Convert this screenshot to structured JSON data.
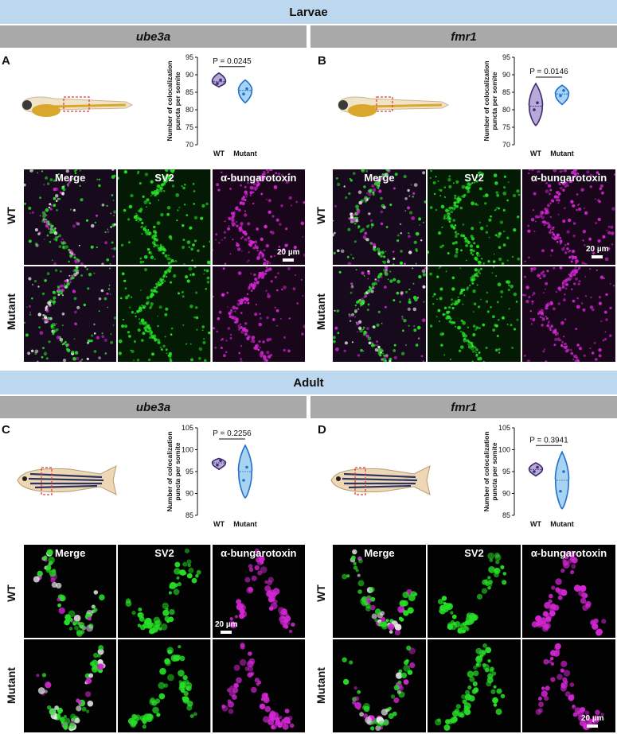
{
  "sections": {
    "larvae": {
      "title": "Larvae"
    },
    "adult": {
      "title": "Adult"
    }
  },
  "panels": {
    "A": {
      "letter": "A",
      "gene": "ube3a"
    },
    "B": {
      "letter": "B",
      "gene": "fmr1"
    },
    "C": {
      "letter": "C",
      "gene": "ube3a"
    },
    "D": {
      "letter": "D",
      "gene": "fmr1"
    }
  },
  "channels": [
    "Merge",
    "SV2",
    "α-bungarotoxin"
  ],
  "rows": [
    "WT",
    "Mutant"
  ],
  "scale_bar": "20 µm",
  "colors": {
    "wt_violin": "#b9a9d8",
    "wt_edge": "#3a2a70",
    "mut_violin": "#a8d4f2",
    "mut_edge": "#1f6fd0",
    "green": "#26e026",
    "magenta": "#d426d4"
  },
  "chart_data": [
    {
      "type": "violin",
      "panel": "A",
      "ylabel": "Number of colocalization puncta per somite",
      "ylim": [
        70,
        95
      ],
      "yticks": [
        70,
        75,
        80,
        85,
        90,
        95
      ],
      "categories": [
        "WT",
        "Mutant"
      ],
      "annotation": "P = 0.0245",
      "series": [
        {
          "name": "WT",
          "min": 86.5,
          "max": 90.5,
          "median": 88,
          "points": [
            87.5,
            88.5
          ]
        },
        {
          "name": "Mutant",
          "min": 82,
          "max": 88.5,
          "median": 85.5,
          "points": [
            84.5,
            86
          ]
        }
      ]
    },
    {
      "type": "violin",
      "panel": "B",
      "ylabel": "Number of colocalization puncta per somite",
      "ylim": [
        70,
        95
      ],
      "yticks": [
        70,
        75,
        80,
        85,
        90,
        95
      ],
      "categories": [
        "WT",
        "Mutant"
      ],
      "annotation": "P = 0.0146",
      "series": [
        {
          "name": "WT",
          "min": 75.5,
          "max": 87.5,
          "median": 81,
          "points": [
            80,
            82
          ]
        },
        {
          "name": "Mutant",
          "min": 81.5,
          "max": 87,
          "median": 84.5,
          "points": [
            84,
            85.5
          ]
        }
      ]
    },
    {
      "type": "violin",
      "panel": "C",
      "ylabel": "Number of colocalization puncta per somite",
      "ylim": [
        85,
        105
      ],
      "yticks": [
        85,
        90,
        95,
        100,
        105
      ],
      "categories": [
        "WT",
        "Mutant"
      ],
      "annotation": "P = 0.2256",
      "series": [
        {
          "name": "WT",
          "min": 95.5,
          "max": 98,
          "median": 97,
          "points": [
            96.5,
            97.5
          ]
        },
        {
          "name": "Mutant",
          "min": 89,
          "max": 101,
          "median": 95,
          "points": [
            93,
            96
          ]
        }
      ]
    },
    {
      "type": "violin",
      "panel": "D",
      "ylabel": "Number of colocalization puncta per somite",
      "ylim": [
        85,
        105
      ],
      "yticks": [
        85,
        90,
        95,
        100,
        105
      ],
      "categories": [
        "WT",
        "Mutant"
      ],
      "annotation": "P = 0.3941",
      "series": [
        {
          "name": "WT",
          "min": 94,
          "max": 97,
          "median": 95.5,
          "points": [
            95,
            96
          ]
        },
        {
          "name": "Mutant",
          "min": 86.5,
          "max": 99.5,
          "median": 93,
          "points": [
            90.5,
            95
          ]
        }
      ]
    }
  ]
}
